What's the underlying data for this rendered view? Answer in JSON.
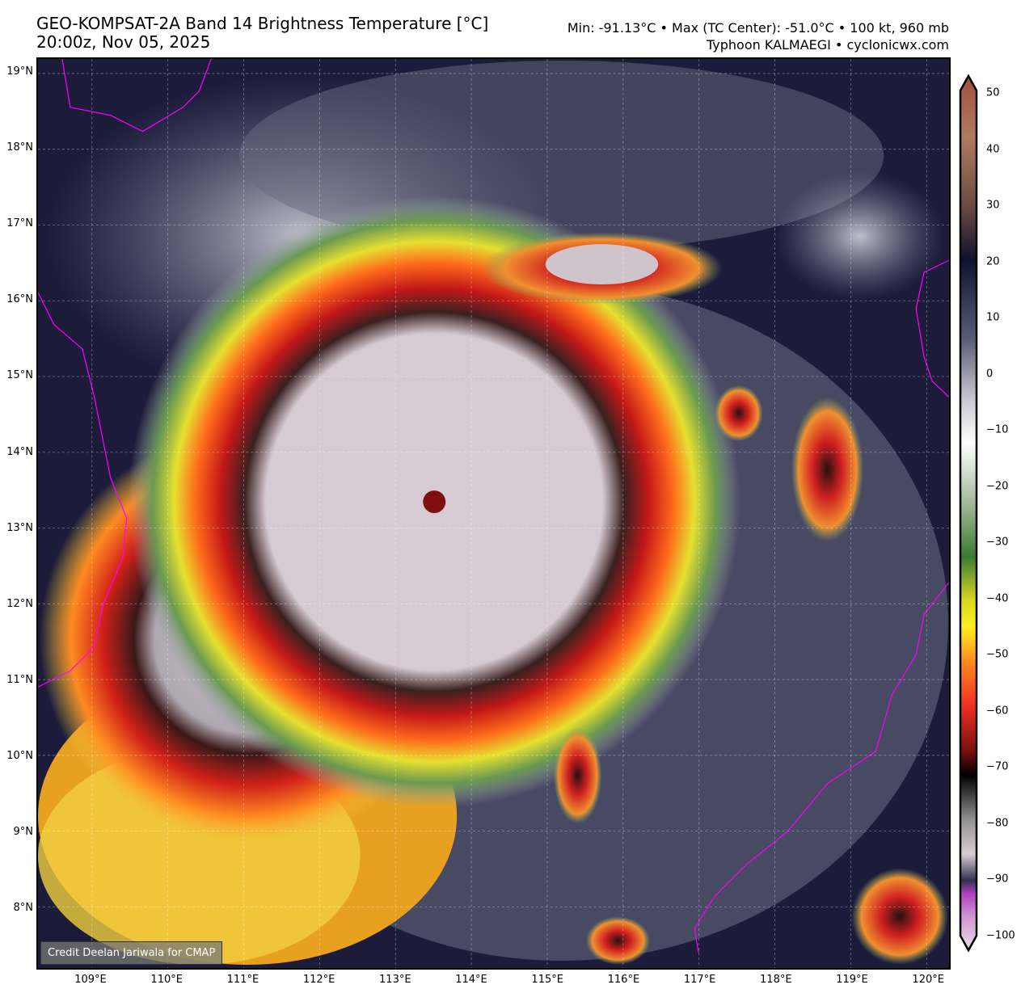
{
  "header": {
    "title": "GEO-KOMPSAT-2A Band 14 Brightness Temperature [°C]",
    "datetime": "20:00z, Nov 05, 2025",
    "stats": "Min: -91.13°C • Max (TC Center): -51.0°C • 100 kt, 960 mb",
    "storm_site": "Typhoon KALMAEGI • cyclonicwx.com"
  },
  "map": {
    "lat_labels": [
      "19°N",
      "18°N",
      "17°N",
      "16°N",
      "15°N",
      "14°N",
      "13°N",
      "12°N",
      "11°N",
      "10°N",
      "9°N",
      "8°N"
    ],
    "lon_labels": [
      "109°E",
      "110°E",
      "111°E",
      "112°E",
      "113°E",
      "114°E",
      "115°E",
      "116°E",
      "117°E",
      "118°E",
      "119°E",
      "120°E"
    ],
    "credit": "Credit Deelan Jariwala for CMAP",
    "coastline_color": "#ff00ff",
    "background_color": "#1c1c3a"
  },
  "colorbar": {
    "ticks": [
      "50",
      "40",
      "30",
      "20",
      "10",
      "0",
      "−10",
      "−20",
      "−30",
      "−40",
      "−50",
      "−60",
      "−70",
      "−80",
      "−90",
      "−100"
    ],
    "range": [
      -100,
      50
    ],
    "unit": "°C"
  }
}
